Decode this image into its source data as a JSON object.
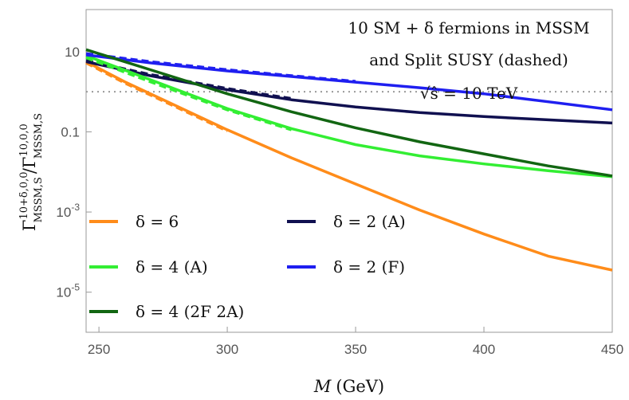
{
  "chart_data": {
    "type": "line",
    "annotation_lines": [
      "10 SM + δ fermions in MSSM",
      "and Split SUSY (dashed)",
      "√ŝ = 10 TeV"
    ],
    "xlabel_var": "M",
    "xlabel_unit": "(GeV)",
    "ylabel_base": "Γ",
    "ylabel_num_sup": "10+δ,0,0",
    "ylabel_num_sub": "MSSM,S",
    "ylabel_slash": "/",
    "ylabel_den_sup": "10,0,0",
    "ylabel_den_sub": "MSSM,S",
    "x_range": [
      245,
      450
    ],
    "y_scale": "log",
    "y_range_log10": [
      -6,
      2.05
    ],
    "x_ticks": [
      "250",
      "300",
      "350",
      "400",
      "450"
    ],
    "y_ticks": [
      {
        "text": "10",
        "base": "10",
        "exp": "",
        "value": 10
      },
      {
        "text": "0.1",
        "base": "0.1",
        "exp": "",
        "value": 0.1
      },
      {
        "text": "10-3",
        "base": "10",
        "exp": "-3",
        "value": 0.001
      },
      {
        "text": "10-5",
        "base": "10",
        "exp": "-5",
        "value": 1e-05
      }
    ],
    "reference_line": 1,
    "series": [
      {
        "name": "δ = 6",
        "color": "#ff8c1a",
        "x": [
          245,
          260,
          280,
          300,
          325,
          350,
          375,
          400,
          425,
          450
        ],
        "y_log10": [
          0.75,
          0.25,
          -0.35,
          -0.95,
          -1.65,
          -2.3,
          -2.95,
          -3.55,
          -4.1,
          -4.45
        ],
        "dashed_y_log10": [
          0.72,
          0.22,
          -0.38,
          -0.98
        ]
      },
      {
        "name": "δ = 2 (A)",
        "color": "#101050",
        "x": [
          245,
          270,
          300,
          325,
          350,
          375,
          400,
          425,
          450
        ],
        "y_log10": [
          0.75,
          0.4,
          0.05,
          -0.2,
          -0.38,
          -0.52,
          -0.62,
          -0.7,
          -0.78
        ],
        "dashed_y_log10": [
          0.78,
          0.43,
          0.08,
          -0.17
        ]
      },
      {
        "name": "δ = 4 (A)",
        "color": "#33ee33",
        "x": [
          245,
          270,
          300,
          325,
          350,
          375,
          400,
          425,
          450
        ],
        "y_log10": [
          0.9,
          0.3,
          -0.42,
          -0.92,
          -1.32,
          -1.6,
          -1.8,
          -1.97,
          -2.12
        ],
        "dashed_y_log10": [
          0.85,
          0.25,
          -0.45,
          -0.95
        ]
      },
      {
        "name": "δ = 2 (F)",
        "color": "#1f1ff0",
        "x": [
          245,
          270,
          300,
          325,
          350,
          375,
          400,
          425,
          450
        ],
        "y_log10": [
          0.92,
          0.72,
          0.52,
          0.38,
          0.24,
          0.1,
          -0.05,
          -0.25,
          -0.45
        ],
        "dashed_y_log10": [
          0.95,
          0.75,
          0.55,
          0.4,
          0.26
        ]
      },
      {
        "name": "δ = 4 (2F 2A)",
        "color": "#126612",
        "x": [
          245,
          270,
          300,
          325,
          350,
          375,
          400,
          425,
          450
        ],
        "y_log10": [
          1.05,
          0.55,
          -0.05,
          -0.5,
          -0.9,
          -1.25,
          -1.55,
          -1.85,
          -2.1
        ],
        "dashed_y_log10": []
      }
    ]
  }
}
